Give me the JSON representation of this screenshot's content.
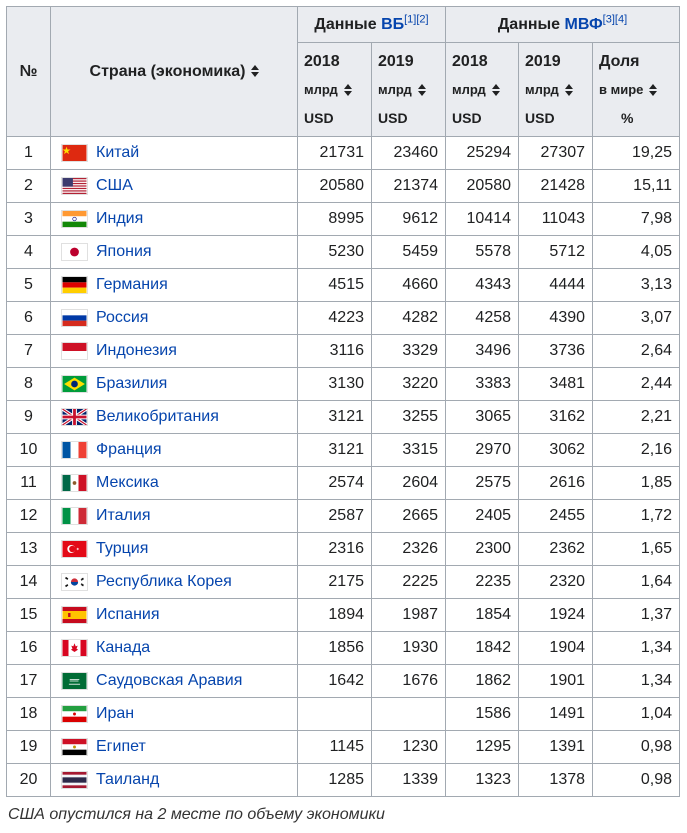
{
  "header": {
    "num": "№",
    "country": "Страна (экономика)",
    "wb_prefix": "Данные ",
    "wb_link": "ВБ",
    "wb_refs": "[1][2]",
    "imf_prefix": "Данные ",
    "imf_link": "МВФ",
    "imf_refs": "[3][4]",
    "y2018": "2018",
    "y2019": "2019",
    "unit": "млрд",
    "usd": "USD",
    "share": "Доля",
    "share_sub": "в мире",
    "percent": "%"
  },
  "colors": {
    "header_bg": "#eaecf0",
    "border": "#a2a9b1",
    "link": "#0645ad",
    "text": "#202122"
  },
  "rows": [
    {
      "rank": "1",
      "country": "Китай",
      "flag": "cn",
      "wb2018": "21731",
      "wb2019": "23460",
      "imf2018": "25294",
      "imf2019": "27307",
      "share": "19,25"
    },
    {
      "rank": "2",
      "country": "США",
      "flag": "us",
      "wb2018": "20580",
      "wb2019": "21374",
      "imf2018": "20580",
      "imf2019": "21428",
      "share": "15,11"
    },
    {
      "rank": "3",
      "country": "Индия",
      "flag": "in",
      "wb2018": "8995",
      "wb2019": "9612",
      "imf2018": "10414",
      "imf2019": "11043",
      "share": "7,98"
    },
    {
      "rank": "4",
      "country": "Япония",
      "flag": "jp",
      "wb2018": "5230",
      "wb2019": "5459",
      "imf2018": "5578",
      "imf2019": "5712",
      "share": "4,05"
    },
    {
      "rank": "5",
      "country": "Германия",
      "flag": "de",
      "wb2018": "4515",
      "wb2019": "4660",
      "imf2018": "4343",
      "imf2019": "4444",
      "share": "3,13"
    },
    {
      "rank": "6",
      "country": "Россия",
      "flag": "ru",
      "wb2018": "4223",
      "wb2019": "4282",
      "imf2018": "4258",
      "imf2019": "4390",
      "share": "3,07"
    },
    {
      "rank": "7",
      "country": "Индонезия",
      "flag": "id",
      "wb2018": "3116",
      "wb2019": "3329",
      "imf2018": "3496",
      "imf2019": "3736",
      "share": "2,64"
    },
    {
      "rank": "8",
      "country": "Бразилия",
      "flag": "br",
      "wb2018": "3130",
      "wb2019": "3220",
      "imf2018": "3383",
      "imf2019": "3481",
      "share": "2,44"
    },
    {
      "rank": "9",
      "country": "Великобритания",
      "flag": "gb",
      "wb2018": "3121",
      "wb2019": "3255",
      "imf2018": "3065",
      "imf2019": "3162",
      "share": "2,21"
    },
    {
      "rank": "10",
      "country": "Франция",
      "flag": "fr",
      "wb2018": "3121",
      "wb2019": "3315",
      "imf2018": "2970",
      "imf2019": "3062",
      "share": "2,16"
    },
    {
      "rank": "11",
      "country": "Мексика",
      "flag": "mx",
      "wb2018": "2574",
      "wb2019": "2604",
      "imf2018": "2575",
      "imf2019": "2616",
      "share": "1,85"
    },
    {
      "rank": "12",
      "country": "Италия",
      "flag": "it",
      "wb2018": "2587",
      "wb2019": "2665",
      "imf2018": "2405",
      "imf2019": "2455",
      "share": "1,72"
    },
    {
      "rank": "13",
      "country": "Турция",
      "flag": "tr",
      "wb2018": "2316",
      "wb2019": "2326",
      "imf2018": "2300",
      "imf2019": "2362",
      "share": "1,65"
    },
    {
      "rank": "14",
      "country": "Республика Корея",
      "flag": "kr",
      "wb2018": "2175",
      "wb2019": "2225",
      "imf2018": "2235",
      "imf2019": "2320",
      "share": "1,64"
    },
    {
      "rank": "15",
      "country": "Испания",
      "flag": "es",
      "wb2018": "1894",
      "wb2019": "1987",
      "imf2018": "1854",
      "imf2019": "1924",
      "share": "1,37"
    },
    {
      "rank": "16",
      "country": "Канада",
      "flag": "ca",
      "wb2018": "1856",
      "wb2019": "1930",
      "imf2018": "1842",
      "imf2019": "1904",
      "share": "1,34"
    },
    {
      "rank": "17",
      "country": "Саудовская Аравия",
      "flag": "sa",
      "wb2018": "1642",
      "wb2019": "1676",
      "imf2018": "1862",
      "imf2019": "1901",
      "share": "1,34"
    },
    {
      "rank": "18",
      "country": "Иран",
      "flag": "ir",
      "wb2018": "",
      "wb2019": "",
      "imf2018": "1586",
      "imf2019": "1491",
      "share": "1,04"
    },
    {
      "rank": "19",
      "country": "Египет",
      "flag": "eg",
      "wb2018": "1145",
      "wb2019": "1230",
      "imf2018": "1295",
      "imf2019": "1391",
      "share": "0,98"
    },
    {
      "rank": "20",
      "country": "Таиланд",
      "flag": "th",
      "wb2018": "1285",
      "wb2019": "1339",
      "imf2018": "1323",
      "imf2019": "1378",
      "share": "0,98"
    }
  ],
  "caption": "США опустился на 2 месте по объему экономики"
}
